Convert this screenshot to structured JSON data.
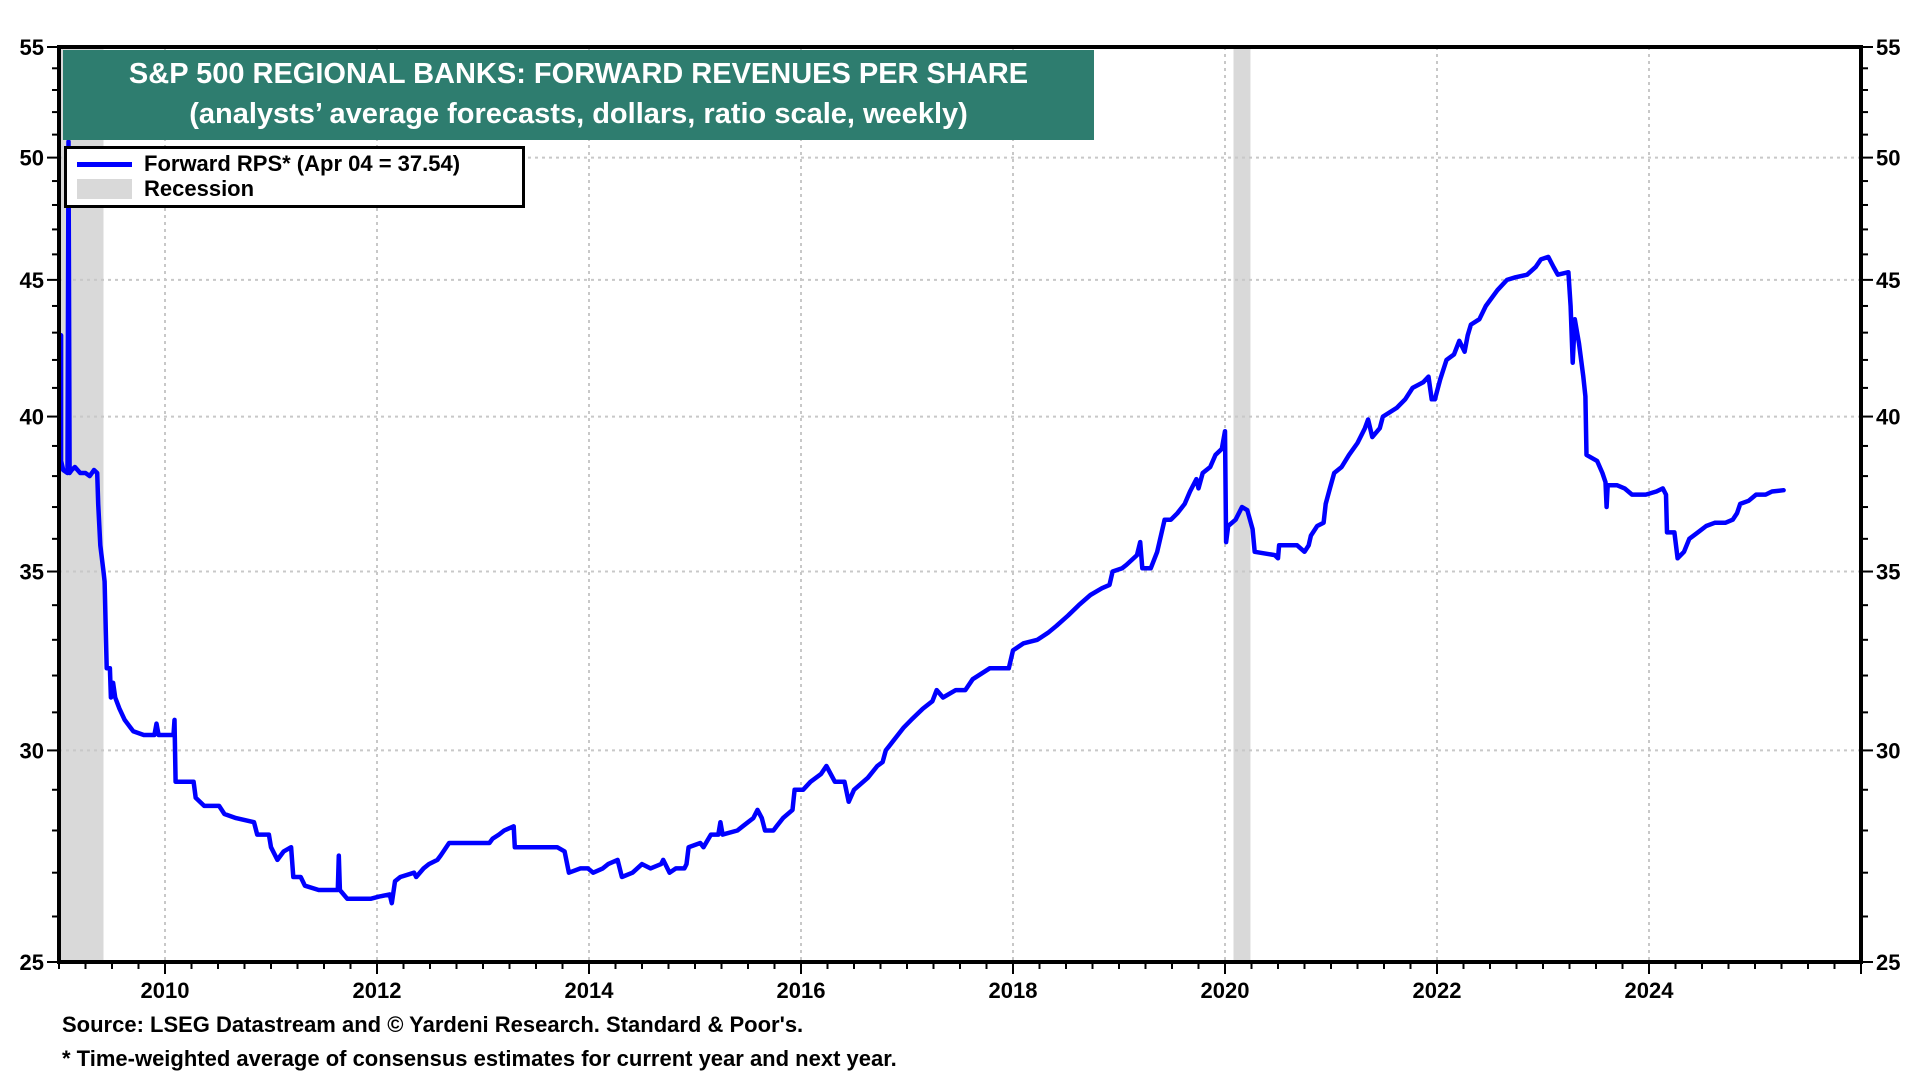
{
  "chart_data": {
    "type": "line",
    "title": "S&P 500 REGIONAL BANKS: FORWARD REVENUES PER SHARE",
    "subtitle": "(analysts’ average forecasts, dollars, ratio scale, weekly)",
    "xlabel": "",
    "ylabel": "",
    "y_scale": "log",
    "ylim": [
      25,
      55
    ],
    "xlim": [
      2009.0,
      2026.0
    ],
    "y_ticks": [
      25,
      30,
      35,
      40,
      45,
      50,
      55
    ],
    "y_tick_labels": [
      "25",
      "30",
      "35",
      "40",
      "45",
      "50",
      "55"
    ],
    "x_ticks": [
      2010,
      2012,
      2014,
      2016,
      2018,
      2020,
      2022,
      2024
    ],
    "x_tick_labels": [
      "2010",
      "2012",
      "2014",
      "2016",
      "2018",
      "2020",
      "2022",
      "2024"
    ],
    "grid": true,
    "legend": {
      "placement": "top-left",
      "entries": [
        {
          "label": "Forward RPS* (Apr 04 = 37.54)",
          "type": "line",
          "color": "#0000ff"
        },
        {
          "label": "Recession",
          "type": "band",
          "color": "#d9d9d9"
        }
      ]
    },
    "recessions": [
      {
        "start": 2009.0,
        "end": 2009.42
      },
      {
        "start": 2020.08,
        "end": 2020.24
      }
    ],
    "series": [
      {
        "name": "Forward RPS*",
        "color": "#0000ff",
        "points": [
          [
            2009.02,
            42.9
          ],
          [
            2009.02,
            38.5
          ],
          [
            2009.04,
            38.2
          ],
          [
            2009.08,
            38.1
          ],
          [
            2009.09,
            50.7
          ],
          [
            2009.1,
            38.1
          ],
          [
            2009.12,
            38.2
          ],
          [
            2009.15,
            38.3
          ],
          [
            2009.2,
            38.1
          ],
          [
            2009.25,
            38.1
          ],
          [
            2009.29,
            38.0
          ],
          [
            2009.33,
            38.2
          ],
          [
            2009.36,
            38.1
          ],
          [
            2009.37,
            37.1
          ],
          [
            2009.39,
            35.8
          ],
          [
            2009.42,
            35.0
          ],
          [
            2009.43,
            34.7
          ],
          [
            2009.45,
            32.2
          ],
          [
            2009.48,
            32.2
          ],
          [
            2009.49,
            31.4
          ],
          [
            2009.51,
            31.8
          ],
          [
            2009.53,
            31.4
          ],
          [
            2009.57,
            31.1
          ],
          [
            2009.62,
            30.8
          ],
          [
            2009.7,
            30.5
          ],
          [
            2009.8,
            30.4
          ],
          [
            2009.9,
            30.4
          ],
          [
            2009.92,
            30.7
          ],
          [
            2009.94,
            30.4
          ],
          [
            2010.08,
            30.4
          ],
          [
            2010.09,
            30.8
          ],
          [
            2010.1,
            29.2
          ],
          [
            2010.27,
            29.2
          ],
          [
            2010.29,
            28.8
          ],
          [
            2010.37,
            28.6
          ],
          [
            2010.51,
            28.6
          ],
          [
            2010.56,
            28.4
          ],
          [
            2010.67,
            28.3
          ],
          [
            2010.84,
            28.2
          ],
          [
            2010.87,
            27.9
          ],
          [
            2010.98,
            27.9
          ],
          [
            2011.0,
            27.6
          ],
          [
            2011.06,
            27.3
          ],
          [
            2011.12,
            27.5
          ],
          [
            2011.19,
            27.6
          ],
          [
            2011.21,
            26.9
          ],
          [
            2011.28,
            26.9
          ],
          [
            2011.32,
            26.7
          ],
          [
            2011.45,
            26.6
          ],
          [
            2011.54,
            26.6
          ],
          [
            2011.63,
            26.6
          ],
          [
            2011.64,
            27.4
          ],
          [
            2011.65,
            26.6
          ],
          [
            2011.72,
            26.4
          ],
          [
            2011.81,
            26.4
          ],
          [
            2011.94,
            26.4
          ],
          [
            2012.02,
            26.45
          ],
          [
            2012.12,
            26.5
          ],
          [
            2012.14,
            26.3
          ],
          [
            2012.17,
            26.8
          ],
          [
            2012.22,
            26.9
          ],
          [
            2012.35,
            27.0
          ],
          [
            2012.37,
            26.9
          ],
          [
            2012.44,
            27.1
          ],
          [
            2012.49,
            27.2
          ],
          [
            2012.57,
            27.3
          ],
          [
            2012.6,
            27.4
          ],
          [
            2012.68,
            27.7
          ],
          [
            2013.06,
            27.7
          ],
          [
            2013.09,
            27.8
          ],
          [
            2013.15,
            27.9
          ],
          [
            2013.2,
            28.0
          ],
          [
            2013.29,
            28.1
          ],
          [
            2013.3,
            27.6
          ],
          [
            2013.54,
            27.6
          ],
          [
            2013.7,
            27.6
          ],
          [
            2013.77,
            27.5
          ],
          [
            2013.81,
            27.0
          ],
          [
            2013.92,
            27.1
          ],
          [
            2013.99,
            27.1
          ],
          [
            2014.04,
            27.0
          ],
          [
            2014.13,
            27.1
          ],
          [
            2014.18,
            27.2
          ],
          [
            2014.27,
            27.3
          ],
          [
            2014.31,
            26.9
          ],
          [
            2014.41,
            27.0
          ],
          [
            2014.5,
            27.2
          ],
          [
            2014.58,
            27.1
          ],
          [
            2014.68,
            27.2
          ],
          [
            2014.7,
            27.3
          ],
          [
            2014.76,
            27.0
          ],
          [
            2014.82,
            27.1
          ],
          [
            2014.9,
            27.1
          ],
          [
            2014.92,
            27.2
          ],
          [
            2014.94,
            27.6
          ],
          [
            2015.05,
            27.7
          ],
          [
            2015.08,
            27.6
          ],
          [
            2015.15,
            27.9
          ],
          [
            2015.22,
            27.9
          ],
          [
            2015.24,
            28.2
          ],
          [
            2015.26,
            27.9
          ],
          [
            2015.4,
            28.0
          ],
          [
            2015.45,
            28.1
          ],
          [
            2015.5,
            28.2
          ],
          [
            2015.55,
            28.3
          ],
          [
            2015.59,
            28.5
          ],
          [
            2015.63,
            28.3
          ],
          [
            2015.66,
            28.0
          ],
          [
            2015.74,
            28.0
          ],
          [
            2015.77,
            28.1
          ],
          [
            2015.83,
            28.3
          ],
          [
            2015.92,
            28.5
          ],
          [
            2015.94,
            29.0
          ],
          [
            2016.02,
            29.0
          ],
          [
            2016.09,
            29.2
          ],
          [
            2016.19,
            29.4
          ],
          [
            2016.24,
            29.6
          ],
          [
            2016.32,
            29.2
          ],
          [
            2016.41,
            29.2
          ],
          [
            2016.45,
            28.7
          ],
          [
            2016.5,
            29.0
          ],
          [
            2016.63,
            29.3
          ],
          [
            2016.72,
            29.6
          ],
          [
            2016.77,
            29.7
          ],
          [
            2016.8,
            30.0
          ],
          [
            2016.97,
            30.6
          ],
          [
            2017.04,
            30.8
          ],
          [
            2017.15,
            31.1
          ],
          [
            2017.24,
            31.3
          ],
          [
            2017.28,
            31.6
          ],
          [
            2017.34,
            31.4
          ],
          [
            2017.46,
            31.6
          ],
          [
            2017.55,
            31.6
          ],
          [
            2017.62,
            31.9
          ],
          [
            2017.78,
            32.2
          ],
          [
            2017.96,
            32.2
          ],
          [
            2018.0,
            32.7
          ],
          [
            2018.1,
            32.9
          ],
          [
            2018.23,
            33.0
          ],
          [
            2018.33,
            33.2
          ],
          [
            2018.41,
            33.4
          ],
          [
            2018.52,
            33.7
          ],
          [
            2018.62,
            34.0
          ],
          [
            2018.73,
            34.3
          ],
          [
            2018.84,
            34.5
          ],
          [
            2018.91,
            34.6
          ],
          [
            2018.94,
            35.0
          ],
          [
            2019.03,
            35.1
          ],
          [
            2019.07,
            35.2
          ],
          [
            2019.17,
            35.5
          ],
          [
            2019.2,
            35.9
          ],
          [
            2019.22,
            35.1
          ],
          [
            2019.3,
            35.1
          ],
          [
            2019.36,
            35.6
          ],
          [
            2019.43,
            36.6
          ],
          [
            2019.49,
            36.6
          ],
          [
            2019.55,
            36.8
          ],
          [
            2019.62,
            37.1
          ],
          [
            2019.67,
            37.5
          ],
          [
            2019.73,
            37.9
          ],
          [
            2019.75,
            37.6
          ],
          [
            2019.79,
            38.1
          ],
          [
            2019.86,
            38.3
          ],
          [
            2019.91,
            38.7
          ],
          [
            2019.97,
            38.9
          ],
          [
            2020.0,
            39.5
          ],
          [
            2020.01,
            35.9
          ],
          [
            2020.03,
            36.4
          ],
          [
            2020.1,
            36.6
          ],
          [
            2020.16,
            37.0
          ],
          [
            2020.21,
            36.9
          ],
          [
            2020.26,
            36.3
          ],
          [
            2020.28,
            35.6
          ],
          [
            2020.47,
            35.5
          ],
          [
            2020.5,
            35.4
          ],
          [
            2020.51,
            35.8
          ],
          [
            2020.6,
            35.8
          ],
          [
            2020.68,
            35.8
          ],
          [
            2020.75,
            35.6
          ],
          [
            2020.79,
            35.8
          ],
          [
            2020.81,
            36.1
          ],
          [
            2020.87,
            36.4
          ],
          [
            2020.93,
            36.5
          ],
          [
            2020.95,
            37.1
          ],
          [
            2020.99,
            37.6
          ],
          [
            2021.03,
            38.1
          ],
          [
            2021.1,
            38.3
          ],
          [
            2021.17,
            38.7
          ],
          [
            2021.25,
            39.1
          ],
          [
            2021.32,
            39.6
          ],
          [
            2021.35,
            39.9
          ],
          [
            2021.39,
            39.3
          ],
          [
            2021.46,
            39.6
          ],
          [
            2021.49,
            40.0
          ],
          [
            2021.62,
            40.3
          ],
          [
            2021.7,
            40.6
          ],
          [
            2021.77,
            41.0
          ],
          [
            2021.87,
            41.2
          ],
          [
            2021.92,
            41.4
          ],
          [
            2021.95,
            40.6
          ],
          [
            2021.98,
            40.6
          ],
          [
            2022.03,
            41.3
          ],
          [
            2022.09,
            42.0
          ],
          [
            2022.16,
            42.2
          ],
          [
            2022.21,
            42.7
          ],
          [
            2022.26,
            42.3
          ],
          [
            2022.29,
            42.9
          ],
          [
            2022.32,
            43.3
          ],
          [
            2022.4,
            43.5
          ],
          [
            2022.46,
            44.0
          ],
          [
            2022.57,
            44.6
          ],
          [
            2022.66,
            45.0
          ],
          [
            2022.74,
            45.1
          ],
          [
            2022.85,
            45.2
          ],
          [
            2022.93,
            45.5
          ],
          [
            2022.98,
            45.8
          ],
          [
            2023.05,
            45.9
          ],
          [
            2023.1,
            45.5
          ],
          [
            2023.14,
            45.2
          ],
          [
            2023.24,
            45.3
          ],
          [
            2023.26,
            44.0
          ],
          [
            2023.28,
            41.9
          ],
          [
            2023.3,
            43.5
          ],
          [
            2023.34,
            42.6
          ],
          [
            2023.38,
            41.4
          ],
          [
            2023.4,
            40.7
          ],
          [
            2023.41,
            38.7
          ],
          [
            2023.51,
            38.5
          ],
          [
            2023.56,
            38.1
          ],
          [
            2023.59,
            37.8
          ],
          [
            2023.6,
            37.0
          ],
          [
            2023.61,
            37.7
          ],
          [
            2023.7,
            37.7
          ],
          [
            2023.77,
            37.6
          ],
          [
            2023.84,
            37.4
          ],
          [
            2023.97,
            37.4
          ],
          [
            2024.07,
            37.5
          ],
          [
            2024.13,
            37.6
          ],
          [
            2024.16,
            37.4
          ],
          [
            2024.17,
            36.2
          ],
          [
            2024.24,
            36.2
          ],
          [
            2024.27,
            35.4
          ],
          [
            2024.33,
            35.6
          ],
          [
            2024.38,
            36.0
          ],
          [
            2024.46,
            36.2
          ],
          [
            2024.54,
            36.4
          ],
          [
            2024.62,
            36.5
          ],
          [
            2024.72,
            36.5
          ],
          [
            2024.79,
            36.6
          ],
          [
            2024.83,
            36.8
          ],
          [
            2024.86,
            37.1
          ],
          [
            2024.94,
            37.2
          ],
          [
            2025.01,
            37.4
          ],
          [
            2025.1,
            37.4
          ],
          [
            2025.16,
            37.5
          ],
          [
            2025.27,
            37.54
          ]
        ]
      }
    ]
  },
  "footer": {
    "source": "Source: LSEG Datastream and © Yardeni Research. Standard & Poor's.",
    "note": "* Time-weighted average of consensus estimates for current year and next year."
  }
}
